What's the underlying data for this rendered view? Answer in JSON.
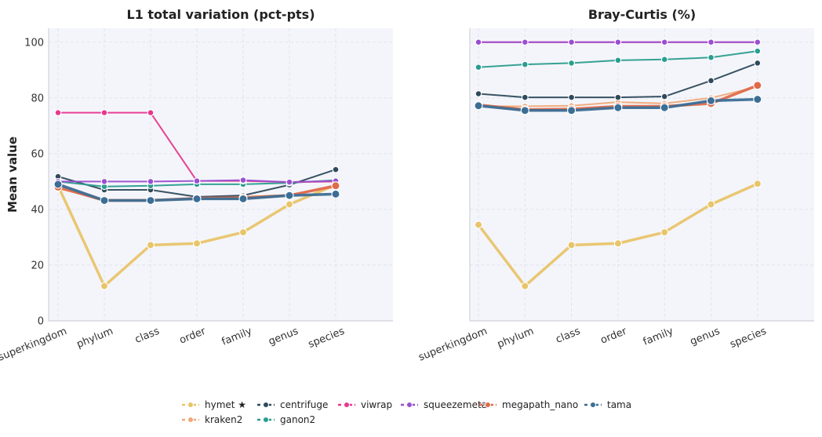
{
  "chart_data": [
    {
      "type": "line",
      "title": "L1 total variation (pct-pts)",
      "ylabel": "Mean value",
      "xlabel": "",
      "categories": [
        "superkingdom",
        "phylum",
        "class",
        "order",
        "family",
        "genus",
        "species"
      ],
      "ylim": [
        0,
        105
      ],
      "yticks": [
        0,
        20,
        40,
        60,
        80,
        100
      ],
      "grid": true,
      "series": [
        {
          "name": "hymet ★",
          "color": "#e8c46a",
          "values": [
            48.5,
            12.5,
            27.2,
            27.8,
            31.8,
            41.8,
            48.8
          ]
        },
        {
          "name": "kraken2",
          "color": "#f0a878",
          "values": [
            47.5,
            43.5,
            43.5,
            44.0,
            44.5,
            45.2,
            48.0
          ]
        },
        {
          "name": "centrifuge",
          "color": "#2e4a5c",
          "values": [
            51.8,
            47.0,
            47.0,
            44.5,
            45.0,
            48.8,
            54.3
          ]
        },
        {
          "name": "ganon2",
          "color": "#2a9d8f",
          "values": [
            50.0,
            48.2,
            48.5,
            49.0,
            49.0,
            49.5,
            50.5
          ]
        },
        {
          "name": "viwrap",
          "color": "#e8368f",
          "values": [
            74.7,
            74.7,
            74.7,
            50.2,
            50.2,
            49.8,
            50.0
          ]
        },
        {
          "name": "squeezemeta",
          "color": "#9b4fd0",
          "values": [
            50.0,
            50.0,
            50.0,
            50.2,
            50.5,
            49.8,
            50.2
          ]
        },
        {
          "name": "megapath_nano",
          "color": "#e06a4a",
          "values": [
            48.0,
            43.2,
            43.2,
            44.0,
            44.2,
            45.0,
            48.5
          ]
        },
        {
          "name": "tama",
          "color": "#3c6e95",
          "values": [
            49.0,
            43.2,
            43.2,
            43.8,
            43.8,
            45.0,
            45.5
          ]
        }
      ]
    },
    {
      "type": "line",
      "title": "Bray-Curtis (%)",
      "ylabel": "",
      "xlabel": "",
      "categories": [
        "superkingdom",
        "phylum",
        "class",
        "order",
        "family",
        "genus",
        "species"
      ],
      "ylim": [
        0,
        105
      ],
      "yticks": [
        0,
        20,
        40,
        60,
        80,
        100
      ],
      "grid": true,
      "series": [
        {
          "name": "hymet ★",
          "color": "#e8c46a",
          "values": [
            34.5,
            12.5,
            27.2,
            27.8,
            31.8,
            41.8,
            49.2
          ]
        },
        {
          "name": "kraken2",
          "color": "#f0a878",
          "values": [
            77.0,
            77.0,
            77.2,
            78.5,
            78.0,
            80.0,
            84.0
          ]
        },
        {
          "name": "centrifuge",
          "color": "#2e4a5c",
          "values": [
            81.5,
            80.2,
            80.2,
            80.2,
            80.5,
            86.2,
            92.5
          ]
        },
        {
          "name": "ganon2",
          "color": "#2a9d8f",
          "values": [
            91.0,
            92.0,
            92.5,
            93.5,
            93.8,
            94.5,
            96.8
          ]
        },
        {
          "name": "viwrap",
          "color": "#e8368f",
          "values": [
            100,
            100,
            100,
            100,
            100,
            100,
            100
          ]
        },
        {
          "name": "squeezemeta",
          "color": "#9b4fd0",
          "values": [
            100,
            100,
            100,
            100,
            100,
            100,
            100
          ]
        },
        {
          "name": "megapath_nano",
          "color": "#e06a4a",
          "values": [
            77.5,
            75.8,
            76.0,
            77.0,
            77.0,
            78.0,
            84.5
          ]
        },
        {
          "name": "tama",
          "color": "#3c6e95",
          "values": [
            77.2,
            75.5,
            75.5,
            76.5,
            76.5,
            79.0,
            79.5
          ]
        }
      ]
    }
  ],
  "legend": {
    "placement": "bottom-center",
    "row1": [
      "hymet ★",
      "centrifuge",
      "viwrap",
      "squeezemeta",
      "megapath_nano",
      "tama"
    ],
    "row2": [
      "kraken2",
      "ganon2"
    ]
  }
}
